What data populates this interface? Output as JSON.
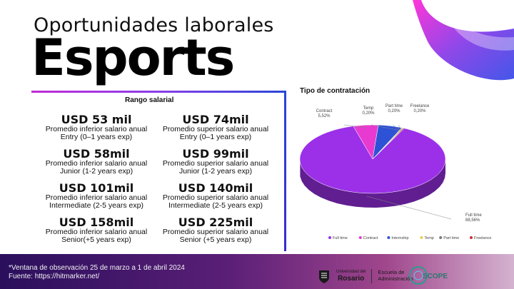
{
  "header": {
    "subtitle": "Oportunidades laborales",
    "title": "Esports"
  },
  "salary": {
    "title": "Rango salarial",
    "items": [
      {
        "amount": "USD 53 mil",
        "desc": "Promedio inferior salario anual",
        "level": "Entry (0–1 years exp)"
      },
      {
        "amount": "USD 74mil",
        "desc": "Promedio superior salario anual",
        "level": "Entry (0–1 years exp)"
      },
      {
        "amount": "USD 58mil",
        "desc": "Promedio inferior salario anual",
        "level": "Junior (1-2 years exp)"
      },
      {
        "amount": "USD 99mil",
        "desc": "Promedio superior salario anual",
        "level": "Junior (1-2 years exp)"
      },
      {
        "amount": "USD 101mil",
        "desc": "Promedio inferior salario anual",
        "level": "Intermediate (2-5 years exp)"
      },
      {
        "amount": "USD 140mil",
        "desc": "Promedio superior salario anual",
        "level": "Intermediate (2-5 years exp)"
      },
      {
        "amount": "USD 158mil",
        "desc": "Promedio inferior salario anual",
        "level": "Senior(+5 years exp)"
      },
      {
        "amount": "USD 225mil",
        "desc": "Promedio superior salario anual",
        "level": "Senior (+5 years exp)"
      }
    ]
  },
  "chart_data": {
    "type": "pie",
    "title": "Tipo de contratación",
    "slices": [
      {
        "name": "Full time",
        "value": 88.56,
        "label": "88,56%",
        "color": "#9b30e8"
      },
      {
        "name": "Contract",
        "value": 5.52,
        "label": "5,52%",
        "color": "#e83ad0"
      },
      {
        "name": "Internship",
        "value": 5.32,
        "label": "",
        "color": "#2e52d6"
      },
      {
        "name": "Temp",
        "value": 0.2,
        "label": "0,20%",
        "color": "#e8d04a"
      },
      {
        "name": "Part time",
        "value": 0.2,
        "label": "0,20%",
        "color": "#7a7a7a"
      },
      {
        "name": "Freelance",
        "value": 0.2,
        "label": "0,20%",
        "color": "#d0303a"
      }
    ],
    "legend": [
      "Full time",
      "Contract",
      "Internship",
      "Temp",
      "Part time",
      "Freelance"
    ],
    "legend_position": "bottom"
  },
  "footer": {
    "note_line1": "*Ventana de observación 25 de marzo a 1 de abril 2024",
    "note_line2": "Fuente: https://hitmarker.net/",
    "university_top": "Universidad del",
    "university_name": "Rosario",
    "school_line1": "Escuela de",
    "school_line2": "Administración",
    "scope_logo": "SCOPE"
  }
}
